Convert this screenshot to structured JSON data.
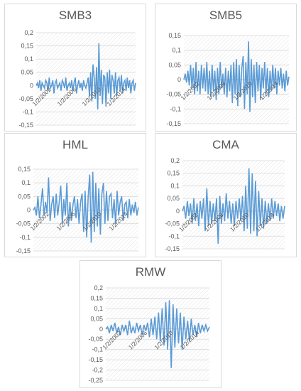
{
  "chart_data": [
    {
      "type": "line",
      "title": "SMB3",
      "series": [
        {
          "values": [
            0.0,
            0.01,
            -0.01,
            0.02,
            -0.02,
            0.01,
            0.0,
            -0.01,
            0.02,
            0.01,
            -0.02,
            0.03,
            -0.01,
            0.0,
            0.02,
            -0.03,
            0.01,
            0.02,
            -0.01,
            0.0,
            0.01,
            -0.02,
            0.02,
            0.01,
            -0.01,
            0.03,
            -0.02,
            0.0,
            0.01,
            -0.01,
            0.02,
            -0.02,
            0.01,
            0.03,
            -0.03,
            0.0,
            0.02,
            -0.01,
            0.01,
            -0.02,
            0.02,
            0.0,
            -0.01,
            0.01,
            0.03,
            -0.04,
            0.05,
            -0.06,
            0.08,
            0.03,
            -0.05,
            0.07,
            -0.09,
            0.16,
            -0.04,
            0.06,
            -0.07,
            0.04,
            0.03,
            -0.08,
            0.05,
            -0.03,
            0.06,
            -0.05,
            0.04,
            0.02,
            -0.03,
            0.05,
            -0.04,
            0.02,
            0.03,
            -0.02,
            0.04,
            -0.03,
            0.01,
            0.02,
            -0.02,
            0.03,
            -0.01,
            0.02,
            -0.03,
            0.01,
            0.02,
            -0.02,
            0.01
          ]
        }
      ],
      "yticks": [
        "0,2",
        "0,15",
        "0,1",
        "0,05",
        "0",
        "-0,05",
        "-0,1",
        "-0,15"
      ],
      "ylim": [
        -0.15,
        0.2
      ],
      "xticks": [
        "1/2/2002",
        "1/2/2006",
        "1/2/2010",
        "1/2/2014"
      ]
    },
    {
      "type": "line",
      "title": "SMB5",
      "series": [
        {
          "values": [
            0.0,
            0.02,
            -0.01,
            0.03,
            -0.02,
            0.05,
            -0.03,
            0.04,
            -0.05,
            0.06,
            -0.04,
            0.03,
            -0.05,
            0.05,
            -0.03,
            0.04,
            -0.04,
            0.06,
            -0.05,
            0.03,
            -0.06,
            0.05,
            -0.04,
            0.03,
            -0.07,
            0.04,
            -0.05,
            0.06,
            -0.03,
            0.02,
            -0.05,
            0.04,
            -0.06,
            0.03,
            -0.04,
            0.05,
            -0.08,
            0.06,
            -0.05,
            0.07,
            -0.09,
            0.05,
            -0.06,
            0.04,
            0.08,
            -0.1,
            0.06,
            -0.05,
            0.13,
            -0.11,
            0.07,
            -0.06,
            0.05,
            -0.08,
            0.06,
            -0.04,
            0.05,
            -0.07,
            0.04,
            -0.03,
            0.06,
            -0.05,
            0.04,
            -0.06,
            0.03,
            -0.04,
            0.05,
            -0.03,
            0.04,
            -0.05,
            0.03,
            -0.02,
            0.04,
            -0.03,
            0.02,
            -0.04,
            0.03,
            -0.02,
            0.01
          ]
        }
      ],
      "yticks": [
        "0,15",
        "0,1",
        "0,05",
        "0",
        "-0,05",
        "-0,1",
        "-0,15"
      ],
      "ylim": [
        -0.15,
        0.15
      ],
      "xticks": [
        "1/2/2002",
        "1/2/2006",
        "1/2/2010",
        "1/2/2014"
      ]
    },
    {
      "type": "line",
      "title": "HML",
      "series": [
        {
          "values": [
            0.0,
            0.01,
            -0.02,
            0.05,
            -0.03,
            0.02,
            0.08,
            -0.02,
            0.03,
            -0.01,
            0.12,
            -0.04,
            0.02,
            0.05,
            -0.03,
            0.06,
            -0.02,
            0.03,
            0.09,
            -0.05,
            0.04,
            -0.02,
            0.1,
            -0.06,
            0.03,
            -0.04,
            0.02,
            0.05,
            -0.03,
            0.04,
            -0.05,
            0.03,
            0.06,
            -0.08,
            0.07,
            -0.1,
            0.05,
            0.13,
            -0.12,
            0.14,
            -0.08,
            0.1,
            -0.06,
            0.08,
            -0.09,
            0.06,
            0.1,
            -0.05,
            0.07,
            -0.04,
            0.05,
            0.06,
            -0.03,
            0.04,
            -0.05,
            0.07,
            -0.02,
            0.03,
            0.05,
            -0.04,
            0.02,
            0.03,
            -0.03,
            0.04,
            -0.02,
            0.02,
            -0.01,
            0.03,
            -0.02,
            0.01
          ]
        }
      ],
      "yticks": [
        "0,15",
        "0,1",
        "0,05",
        "0",
        "-0,05",
        "-0,1",
        "-0,15"
      ],
      "ylim": [
        -0.15,
        0.15
      ],
      "xticks": [
        "1/2/2002",
        "1/2/2006",
        "1/2/2010",
        "1/2/2014"
      ]
    },
    {
      "type": "line",
      "title": "CMA",
      "series": [
        {
          "values": [
            0.0,
            0.02,
            -0.03,
            0.04,
            -0.02,
            0.03,
            -0.05,
            0.05,
            -0.04,
            0.03,
            -0.06,
            0.04,
            -0.03,
            0.05,
            -0.08,
            0.09,
            -0.06,
            0.04,
            -0.05,
            0.03,
            -0.04,
            0.05,
            -0.13,
            0.06,
            -0.05,
            0.03,
            -0.04,
            0.07,
            -0.03,
            0.04,
            -0.05,
            0.03,
            -0.06,
            0.04,
            -0.03,
            0.05,
            -0.04,
            0.06,
            -0.08,
            0.1,
            -0.07,
            0.17,
            -0.09,
            0.15,
            -0.08,
            0.12,
            -0.1,
            0.08,
            -0.06,
            0.05,
            -0.07,
            0.04,
            -0.05,
            0.03,
            -0.04,
            0.05,
            -0.03,
            0.04,
            -0.02,
            0.03,
            -0.04,
            0.02,
            -0.03,
            0.02
          ]
        }
      ],
      "yticks": [
        "0,2",
        "0,15",
        "0,1",
        "0,05",
        "0",
        "-0,05",
        "-0,1",
        "-0,15"
      ],
      "ylim": [
        -0.15,
        0.2
      ],
      "xticks": [
        "1/2/2002",
        "1/2/2006",
        "1/2/2010",
        "1/2/2014"
      ]
    },
    {
      "type": "line",
      "title": "RMW",
      "series": [
        {
          "values": [
            0.0,
            0.01,
            -0.02,
            0.02,
            -0.01,
            0.03,
            -0.02,
            0.01,
            -0.03,
            0.02,
            -0.01,
            0.02,
            -0.03,
            0.04,
            -0.02,
            0.01,
            -0.02,
            0.03,
            -0.01,
            0.02,
            -0.03,
            0.02,
            -0.01,
            0.03,
            -0.04,
            0.05,
            -0.03,
            0.06,
            -0.05,
            0.08,
            -0.06,
            0.1,
            -0.08,
            0.13,
            -0.1,
            0.14,
            -0.19,
            0.12,
            -0.09,
            0.1,
            -0.07,
            0.08,
            -0.1,
            0.06,
            -0.05,
            0.04,
            -0.06,
            0.05,
            -0.03,
            0.02,
            -0.04,
            0.03,
            -0.02,
            0.02,
            -0.01,
            0.02,
            -0.01,
            0.01
          ]
        }
      ],
      "yticks": [
        "0,2",
        "0,15",
        "0,1",
        "0,05",
        "0",
        "-0,05",
        "-0,1",
        "-0,15",
        "-0,2",
        "-0,25"
      ],
      "ylim": [
        -0.25,
        0.2
      ],
      "xticks": [
        "1/2/2002",
        "1/2/2006",
        "1/2/2010",
        "1/2/2014"
      ]
    }
  ]
}
